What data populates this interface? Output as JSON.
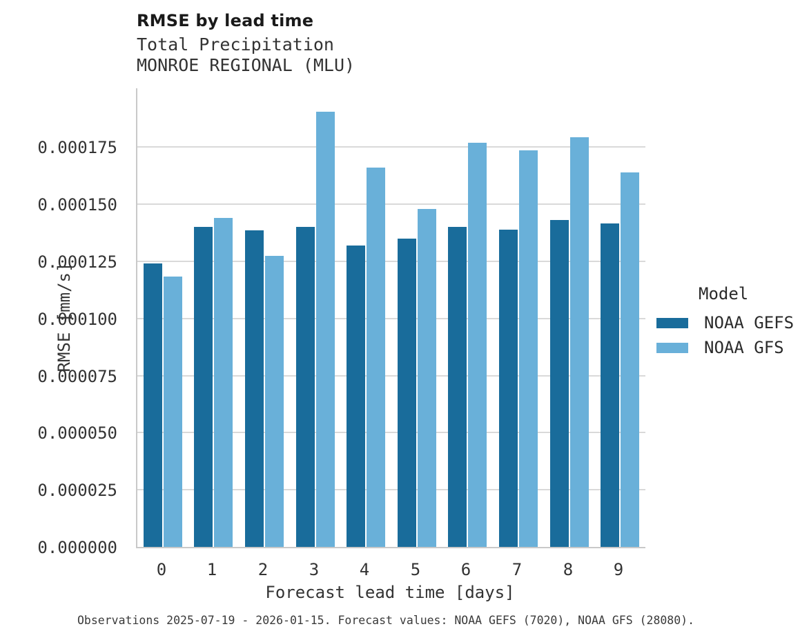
{
  "header": {
    "title": "RMSE by lead time",
    "subtitle1": "Total Precipitation",
    "subtitle2": "MONROE REGIONAL (MLU)"
  },
  "caption": {
    "text": "Observations 2025-07-19 - 2026-01-15. Forecast values: NOAA GEFS (7020), NOAA GFS (28080)."
  },
  "legend": {
    "title": "Model",
    "entries": [
      {
        "label": "NOAA GEFS",
        "color": "#196c9b"
      },
      {
        "label": "NOAA GFS",
        "color": "#69b0d9"
      }
    ]
  },
  "colors": {
    "gefs_bar": "#196c9b",
    "gfs_bar": "#69b0d9",
    "gridline": "#d9d9d9",
    "spine": "#c9c9c9"
  },
  "chart_data": {
    "type": "bar",
    "title": "RMSE by lead time",
    "subtitle": [
      "Total Precipitation",
      "MONROE REGIONAL (MLU)"
    ],
    "xlabel": "Forecast lead time [days]",
    "ylabel": "RMSE [mm/s]",
    "categories": [
      "0",
      "1",
      "2",
      "3",
      "4",
      "5",
      "6",
      "7",
      "8",
      "9"
    ],
    "series": [
      {
        "name": "NOAA GEFS",
        "color": "#196c9b",
        "values": [
          0.000124,
          0.00014,
          0.0001385,
          0.00014,
          0.000132,
          0.000135,
          0.00014,
          0.000139,
          0.000143,
          0.0001415
        ]
      },
      {
        "name": "NOAA GFS",
        "color": "#69b0d9",
        "values": [
          0.0001185,
          0.000144,
          0.0001275,
          0.0001905,
          0.000166,
          0.000148,
          0.000177,
          0.0001735,
          0.0001795,
          0.000164
        ]
      }
    ],
    "ylim": [
      0,
      0.0002008
    ],
    "ytick_step": 2.5e-05,
    "ytick_labels": [
      "0.000000",
      "0.000025",
      "0.000050",
      "0.000075",
      "0.000100",
      "0.000125",
      "0.000150",
      "0.000175"
    ],
    "grid": "horizontal",
    "legend_position": "right",
    "legend_title": "Model"
  }
}
